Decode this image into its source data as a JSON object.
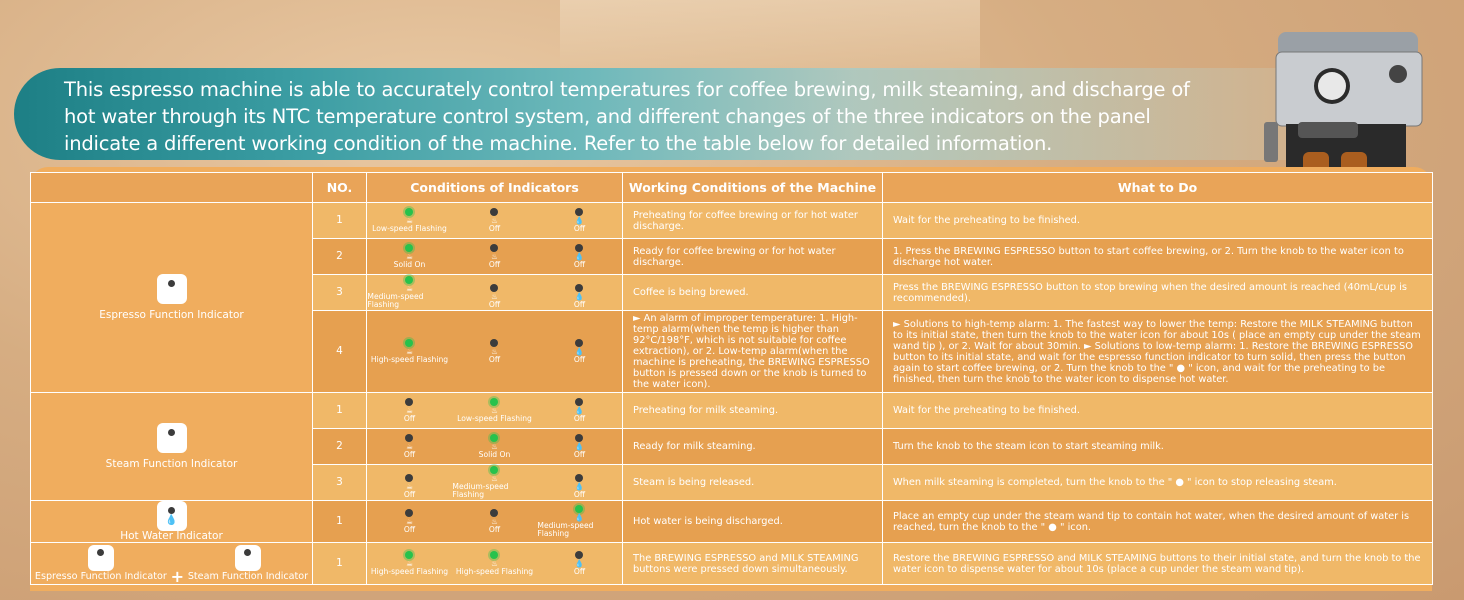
{
  "banner": {
    "text": "This espresso machine is able to accurately control temperatures for coffee brewing, milk steaming, and discharge of hot water through its NTC temperature control system, and different changes of the three indicators on the panel indicate a different working condition of the machine. Refer to the table below for detailed information."
  },
  "table": {
    "headers": [
      "NO.",
      "Conditions of Indicators",
      "Working Conditions of the Machine",
      "What to Do"
    ],
    "groups": [
      {
        "name": "Espresso Function Indicator"
      },
      {
        "name": "Steam Function Indicator"
      },
      {
        "name": "Hot Water Indicator"
      },
      {
        "name_a": "Espresso Function Indicator",
        "plus": "+",
        "name_b": "Steam Function Indicator"
      }
    ],
    "rows": [
      {
        "no": "1",
        "i1": "Low-speed Flashing",
        "i2": "Off",
        "i3": "Off",
        "work": "Preheating for coffee brewing or for hot water discharge.",
        "todo": "Wait for the preheating to be finished."
      },
      {
        "no": "2",
        "i1": "Solid On",
        "i2": "Off",
        "i3": "Off",
        "work": "Ready for coffee brewing or for hot water discharge.",
        "todo": "1. Press the BREWING ESPRESSO button to start coffee brewing, or 2. Turn the knob to the water icon to discharge hot water."
      },
      {
        "no": "3",
        "i1": "Medium-speed Flashing",
        "i2": "Off",
        "i3": "Off",
        "work": "Coffee is being brewed.",
        "todo": "Press the BREWING ESPRESSO button to stop brewing when the desired amount is reached (40mL/cup is recommended)."
      },
      {
        "no": "4",
        "i1": "High-speed Flashing",
        "i2": "Off",
        "i3": "Off",
        "work": "► An alarm of improper temperature: 1. High-temp alarm(when the temp is higher than 92°C/198°F, which is not suitable for coffee extraction), or 2. Low-temp alarm(when the machine is preheating, the BREWING ESPRESSO button is pressed down or the knob is turned to the water icon).",
        "todo": "► Solutions to high-temp alarm: 1. The fastest way to lower the temp: Restore the MILK STEAMING button to its initial state, then turn the knob to the water icon for about 10s ( place an empty cup under the steam wand tip ), or 2. Wait for about 30min. ► Solutions to low-temp alarm: 1. Restore the BREWING ESPRESSO button to its initial state, and wait for the espresso function indicator to turn solid, then press the button again to start coffee brewing, or 2. Turn the knob to the \" ● \" icon, and wait for the preheating to be finished, then turn the knob to the water icon to dispense hot water."
      },
      {
        "no": "1",
        "i1": "Off",
        "i2": "Low-speed Flashing",
        "i3": "Off",
        "work": "Preheating for milk steaming.",
        "todo": "Wait for the preheating to be finished."
      },
      {
        "no": "2",
        "i1": "Off",
        "i2": "Solid On",
        "i3": "Off",
        "work": "Ready for milk steaming.",
        "todo": "Turn the knob to the steam icon to start steaming milk."
      },
      {
        "no": "3",
        "i1": "Off",
        "i2": "Medium-speed Flashing",
        "i3": "Off",
        "work": "Steam is being released.",
        "todo": "When milk steaming is completed, turn the knob to the \" ● \" icon to stop releasing steam."
      },
      {
        "no": "1",
        "i1": "Off",
        "i2": "Off",
        "i3": "Medium-speed Flashing",
        "work": "Hot water is being discharged.",
        "todo": "Place an empty cup under the steam wand tip to contain hot water, when the desired amount of water is reached, turn the knob to the \" ● \" icon."
      },
      {
        "no": "1",
        "i1": "High-speed Flashing",
        "i2": "High-speed Flashing",
        "i3": "Off",
        "work": "The BREWING ESPRESSO and MILK STEAMING buttons were pressed down simultaneously.",
        "todo": "Restore the BREWING ESPRESSO and MILK STEAMING buttons to their initial state, and turn the knob to the water icon to dispense water for about 10s (place a cup under the steam wand tip)."
      }
    ]
  },
  "colors": {
    "teal": "#1d7f85",
    "orange_header": "#e9a458",
    "row_light": "#f0b868",
    "row_dark": "#e6a050",
    "green_led": "#27c24c"
  },
  "icons": [
    "cup-icon",
    "steam-icon",
    "water-drop-icon",
    "indicator-dot-icon",
    "espresso-machine-image"
  ]
}
